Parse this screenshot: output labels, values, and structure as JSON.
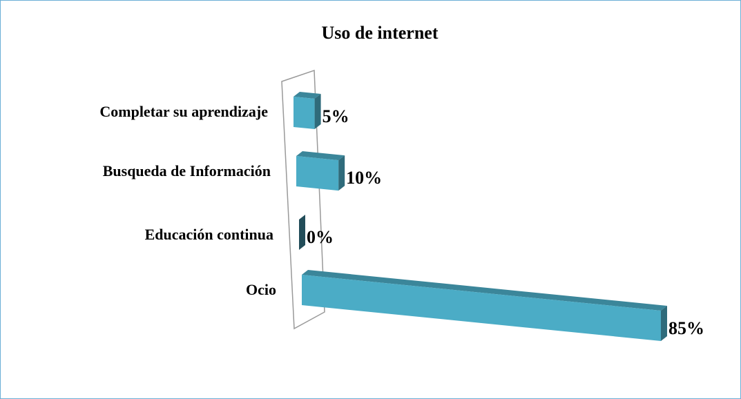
{
  "chart_data": {
    "type": "bar3d",
    "title": "Uso de internet",
    "categories": [
      "Completar su aprendizaje",
      "Busqueda de Información",
      "Educación continua",
      "Ocio"
    ],
    "values": [
      5,
      10,
      0,
      85
    ],
    "value_labels": [
      "5%",
      "10%",
      "0%",
      "85%"
    ],
    "color": "#4bacc6"
  }
}
